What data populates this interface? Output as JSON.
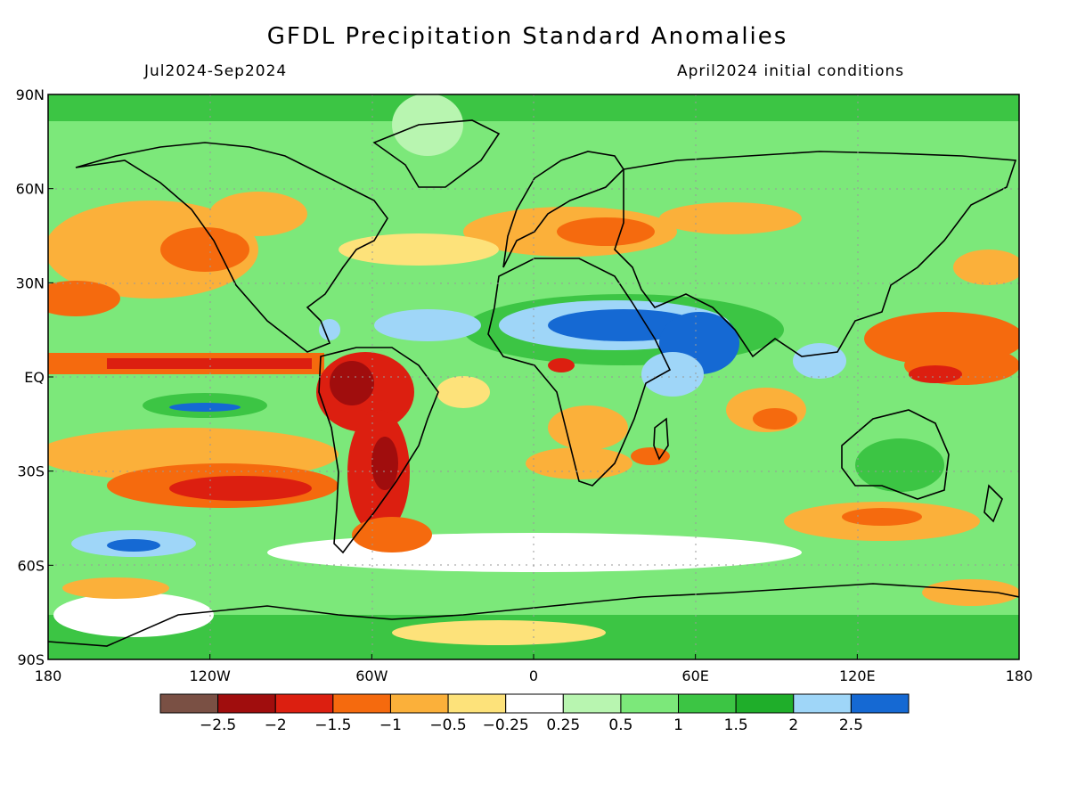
{
  "header": {
    "title": "GFDL Precipitation Standard Anomalies",
    "period": "Jul2024-Sep2024",
    "init": "April2024 initial conditions"
  },
  "map": {
    "lat_labels": [
      "90N",
      "60N",
      "30N",
      "EQ",
      "30S",
      "60S",
      "90S"
    ],
    "lon_labels": [
      "180",
      "120W",
      "60W",
      "0",
      "60E",
      "120E",
      "180"
    ],
    "lat_values": [
      90,
      60,
      30,
      0,
      -30,
      -60,
      -90
    ],
    "lon_values": [
      -180,
      -120,
      -60,
      0,
      60,
      120,
      180
    ]
  },
  "colorbar": {
    "colors": [
      "#7a5044",
      "#a00d0d",
      "#dc1f10",
      "#f56a0e",
      "#fbb03a",
      "#fde27a",
      "#ffffff",
      "#b8f5b0",
      "#7ce87a",
      "#3cc544",
      "#1fae2a",
      "#9fd6f8",
      "#1569d3"
    ],
    "labels": [
      "-2.5",
      "-2",
      "-1.5",
      "-1",
      "-0.5",
      "-0.25",
      "0.25",
      "0.5",
      "1",
      "1.5",
      "2",
      "2.5"
    ]
  }
}
